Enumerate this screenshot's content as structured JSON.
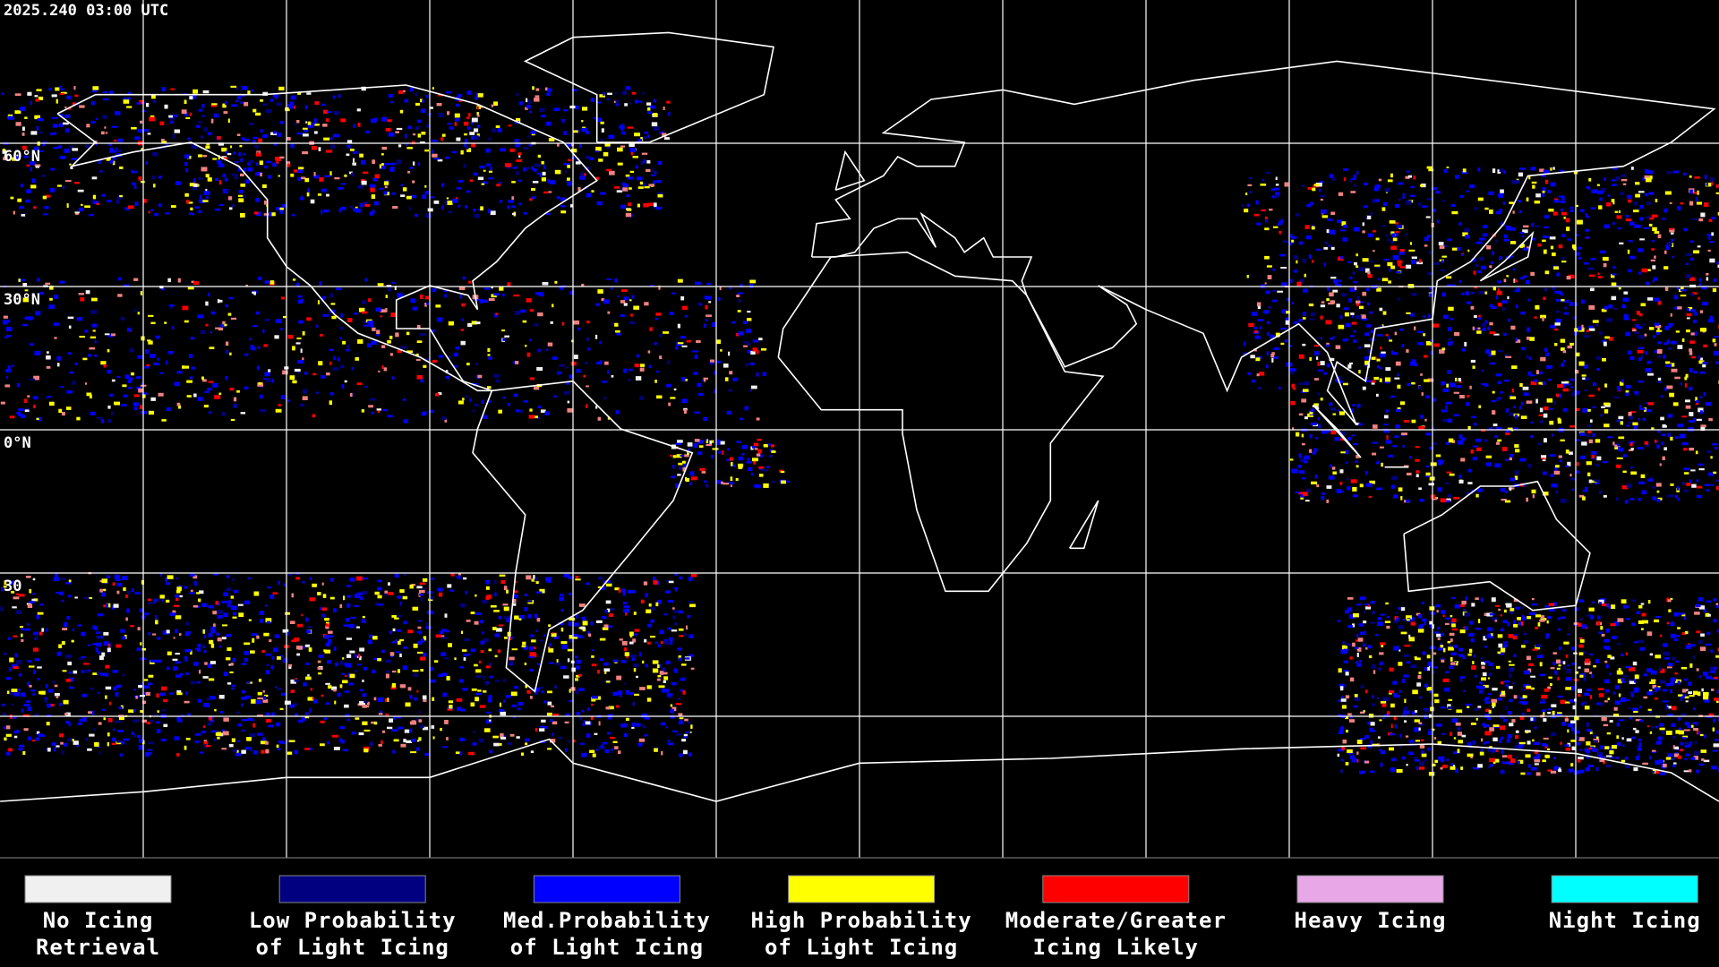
{
  "header": {
    "timestamp": "2025.240 03:00 UTC"
  },
  "latitude_labels": [
    "60°N",
    "30°N",
    "0°N",
    "30"
  ],
  "legend": {
    "items": [
      {
        "color": "#f0f0f0",
        "label": [
          "No Icing",
          "Retrieval"
        ]
      },
      {
        "color": "#000080",
        "label": [
          "Low Probability",
          "of Light Icing"
        ]
      },
      {
        "color": "#0000ff",
        "label": [
          "Med.Probability",
          "of Light Icing"
        ]
      },
      {
        "color": "#ffff00",
        "label": [
          "High Probability",
          "of Light Icing"
        ]
      },
      {
        "color": "#ff0000",
        "label": [
          "Moderate/Greater",
          "Icing Likely"
        ]
      },
      {
        "color": "#e8a8e8",
        "label": [
          "Heavy Icing"
        ]
      },
      {
        "color": "#00ffff",
        "label": [
          "Night Icing"
        ]
      }
    ]
  }
}
